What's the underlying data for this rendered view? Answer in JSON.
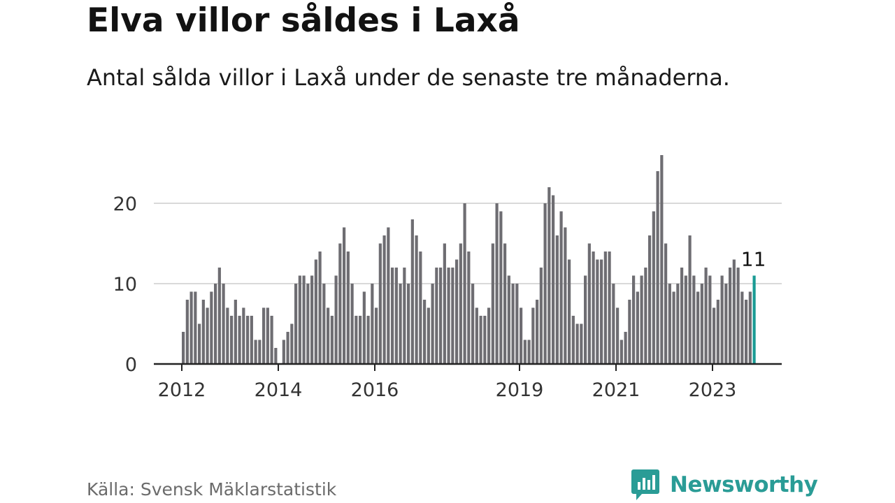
{
  "title": "Elva villor såldes i Laxå",
  "subtitle": "Antal sålda villor i Laxå under de senaste tre månaderna.",
  "source": "Källa: Svensk Mäklarstatistik",
  "brand": {
    "name": "Newsworthy",
    "icon": "newsworthy-logo-icon",
    "color": "#2a9c96"
  },
  "colors": {
    "bar": "#6e6d72",
    "highlight": "#1a9b94",
    "grid": "#d9d9d9",
    "axis": "#222222"
  },
  "chart_data": {
    "type": "bar",
    "title": "Elva villor såldes i Laxå",
    "xlabel": "",
    "ylabel": "",
    "ylim": [
      0,
      27
    ],
    "y_ticks": [
      0,
      10,
      20
    ],
    "x_ticks": [
      {
        "label": "2012",
        "index": 0
      },
      {
        "label": "2014",
        "index": 24
      },
      {
        "label": "2016",
        "index": 48
      },
      {
        "label": "2019",
        "index": 84
      },
      {
        "label": "2021",
        "index": 108
      },
      {
        "label": "2023",
        "index": 132
      }
    ],
    "grid": true,
    "highlight_label": "11",
    "values": [
      4,
      8,
      9,
      9,
      5,
      8,
      7,
      9,
      10,
      12,
      10,
      7,
      6,
      8,
      6,
      7,
      6,
      6,
      3,
      3,
      7,
      7,
      6,
      2,
      0,
      3,
      4,
      5,
      10,
      11,
      11,
      10,
      11,
      13,
      14,
      10,
      7,
      6,
      11,
      15,
      17,
      14,
      10,
      6,
      6,
      9,
      6,
      10,
      7,
      15,
      16,
      17,
      12,
      12,
      10,
      12,
      10,
      18,
      16,
      14,
      8,
      7,
      10,
      12,
      12,
      15,
      12,
      12,
      13,
      15,
      20,
      14,
      10,
      7,
      6,
      6,
      7,
      15,
      20,
      19,
      15,
      11,
      10,
      10,
      7,
      3,
      3,
      7,
      8,
      12,
      20,
      22,
      21,
      16,
      19,
      17,
      13,
      6,
      5,
      5,
      11,
      15,
      14,
      13,
      13,
      14,
      14,
      10,
      7,
      3,
      4,
      8,
      11,
      9,
      11,
      12,
      16,
      19,
      24,
      26,
      15,
      10,
      9,
      10,
      12,
      11,
      16,
      11,
      9,
      10,
      12,
      11,
      7,
      8,
      11,
      10,
      12,
      13,
      12,
      9,
      8,
      9,
      11
    ]
  }
}
